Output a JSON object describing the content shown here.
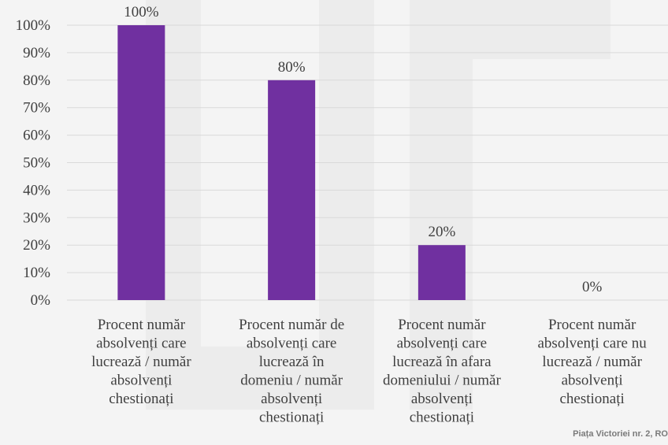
{
  "chart_data": {
    "type": "bar",
    "categories": [
      [
        "Procent număr",
        "absolvenți care",
        "lucrează / număr",
        "absolvenți",
        "chestionați"
      ],
      [
        "Procent număr de",
        "absolvenți care",
        "lucrează în",
        "domeniu / număr",
        "absolvenți",
        "chestionați"
      ],
      [
        "Procent număr",
        "absolvenți care",
        "lucrează în afara",
        "domeniului / număr",
        "absolvenți",
        "chestionați"
      ],
      [
        "Procent număr",
        "absolvenți care nu",
        "lucrează / număr",
        "absolvenți",
        "chestionați"
      ]
    ],
    "values": [
      100,
      80,
      20,
      0
    ],
    "data_labels": [
      "100%",
      "80%",
      "20%",
      "0%"
    ],
    "y_ticks": [
      "0%",
      "10%",
      "20%",
      "30%",
      "40%",
      "50%",
      "60%",
      "70%",
      "80%",
      "90%",
      "100%"
    ],
    "ylim": [
      0,
      100
    ],
    "grid": true,
    "bar_color": "#7030a0",
    "grid_color": "#d9d9d9"
  },
  "watermark": {
    "text": "Piața Victoriei nr. 2, RO"
  }
}
